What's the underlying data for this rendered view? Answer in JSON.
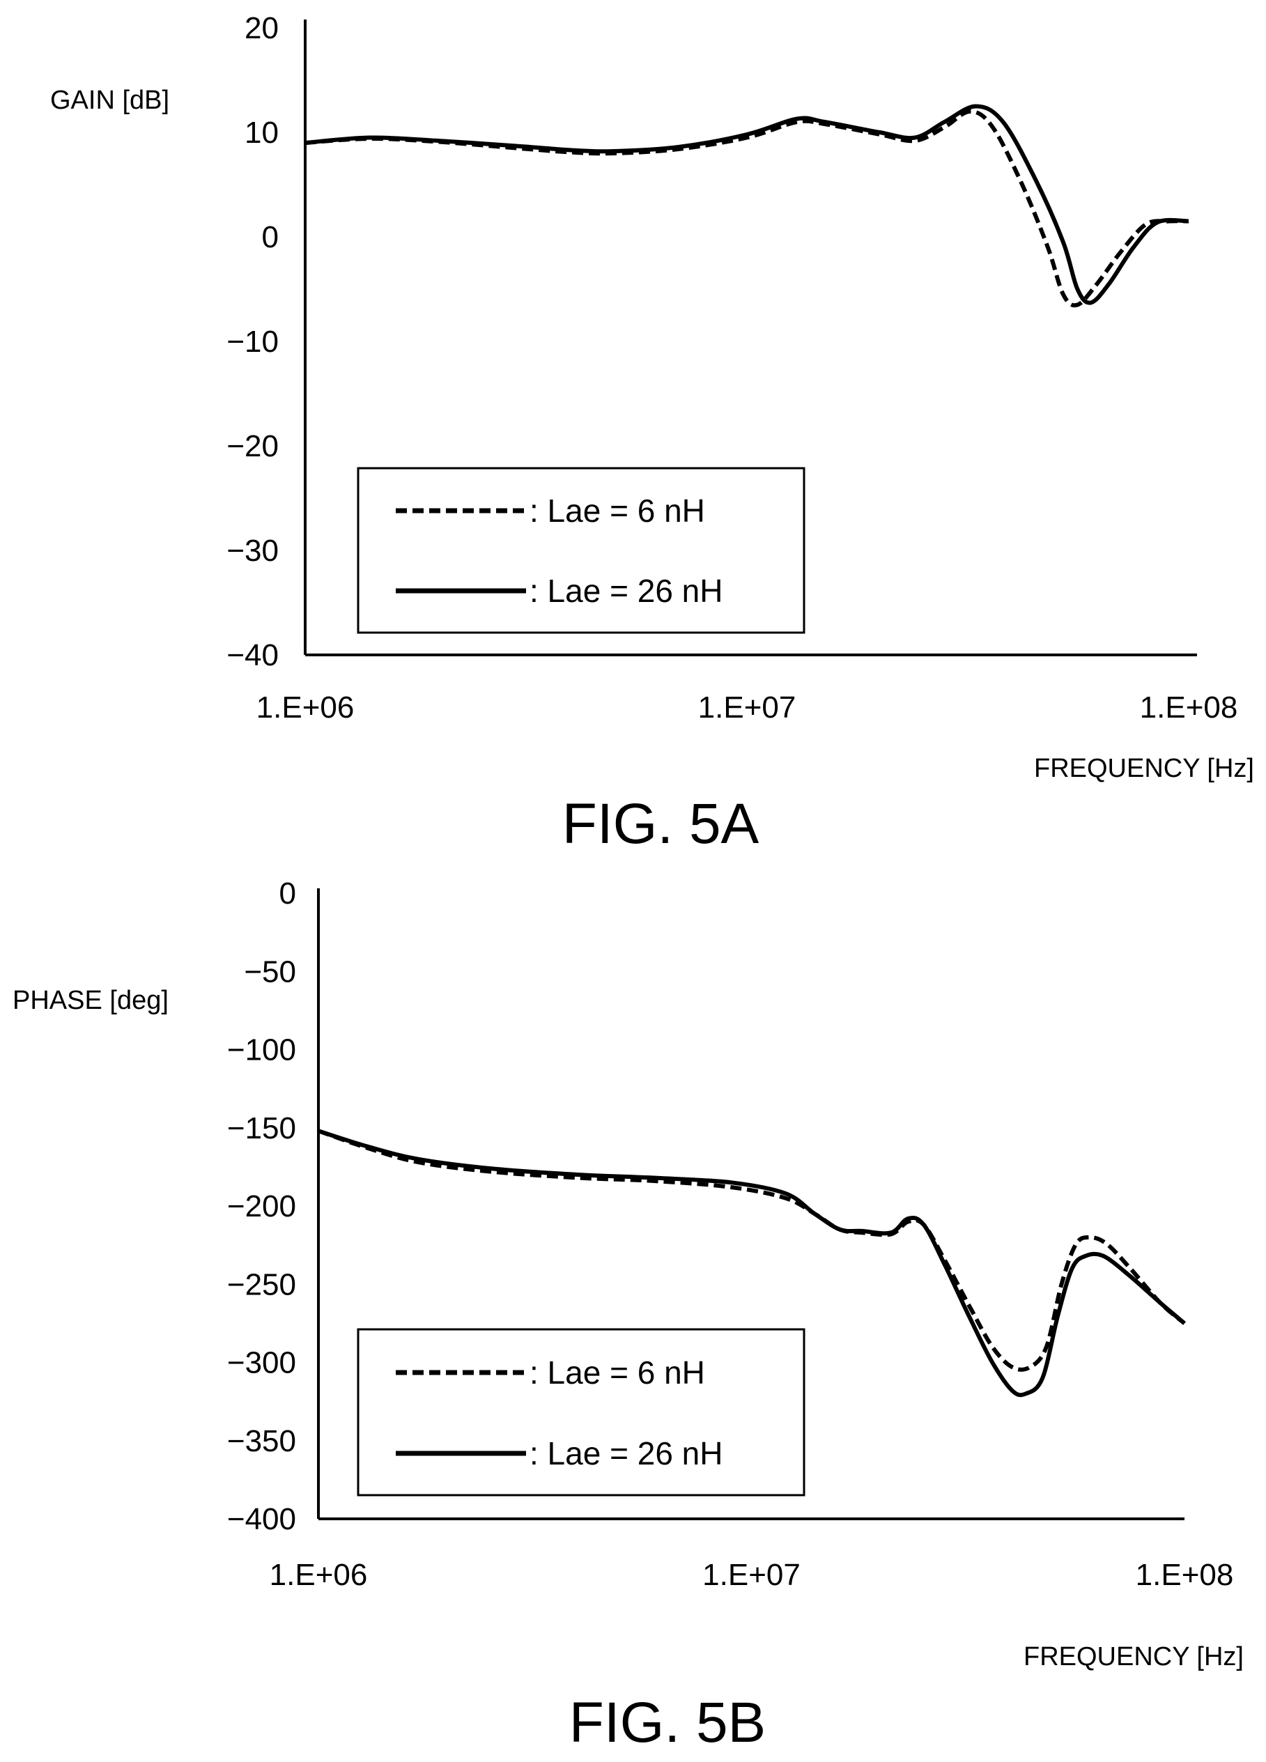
{
  "figures": [
    {
      "caption": "FIG. 5A",
      "chart_data": {
        "type": "line",
        "ylabel": "GAIN [dB]",
        "xlabel": "FREQUENCY [Hz]",
        "x_scale": "log",
        "xlim": [
          1000000,
          100000000
        ],
        "ylim": [
          -40,
          20
        ],
        "x_ticks": [
          "1.E+06",
          "1.E+07",
          "1.E+08"
        ],
        "x_tick_values": [
          1000000,
          10000000,
          100000000
        ],
        "y_ticks": [
          "20",
          "10",
          "0",
          "-10",
          "-20",
          "-30",
          "-40"
        ],
        "y_tick_values": [
          20,
          10,
          0,
          -10,
          -20,
          -30,
          -40
        ],
        "legend_position": "bottom-left",
        "series": [
          {
            "name": ": Lae = 6 nH",
            "style": "dashed",
            "points": [
              [
                1000000,
                9.0
              ],
              [
                1400000,
                9.4
              ],
              [
                2000000,
                9.1
              ],
              [
                3000000,
                8.5
              ],
              [
                4000000,
                8.1
              ],
              [
                5000000,
                8.0
              ],
              [
                7000000,
                8.4
              ],
              [
                10000000,
                9.5
              ],
              [
                13000000,
                11.0
              ],
              [
                15000000,
                10.8
              ],
              [
                20000000,
                9.8
              ],
              [
                24000000,
                9.2
              ],
              [
                28000000,
                10.5
              ],
              [
                32000000,
                12.0
              ],
              [
                36000000,
                10.5
              ],
              [
                42000000,
                5.0
              ],
              [
                48000000,
                -1.0
              ],
              [
                52000000,
                -5.5
              ],
              [
                56000000,
                -6.5
              ],
              [
                62000000,
                -4.5
              ],
              [
                70000000,
                -1.5
              ],
              [
                80000000,
                1.2
              ],
              [
                90000000,
                1.5
              ],
              [
                100000000,
                1.5
              ]
            ]
          },
          {
            "name": ": Lae = 26 nH",
            "style": "solid",
            "points": [
              [
                1000000,
                9.0
              ],
              [
                1400000,
                9.5
              ],
              [
                2000000,
                9.2
              ],
              [
                3000000,
                8.7
              ],
              [
                4000000,
                8.3
              ],
              [
                5000000,
                8.2
              ],
              [
                7000000,
                8.6
              ],
              [
                10000000,
                9.8
              ],
              [
                13000000,
                11.3
              ],
              [
                15000000,
                11.0
              ],
              [
                20000000,
                10.0
              ],
              [
                24000000,
                9.5
              ],
              [
                28000000,
                11.0
              ],
              [
                33000000,
                12.5
              ],
              [
                38000000,
                11.0
              ],
              [
                45000000,
                5.5
              ],
              [
                52000000,
                -0.5
              ],
              [
                56000000,
                -5.0
              ],
              [
                60000000,
                -6.3
              ],
              [
                66000000,
                -4.5
              ],
              [
                75000000,
                -1.0
              ],
              [
                85000000,
                1.4
              ],
              [
                100000000,
                1.5
              ]
            ]
          }
        ]
      }
    },
    {
      "caption": "FIG. 5B",
      "chart_data": {
        "type": "line",
        "ylabel": "PHASE [deg]",
        "xlabel": "FREQUENCY [Hz]",
        "x_scale": "log",
        "xlim": [
          1000000,
          100000000
        ],
        "ylim": [
          -400,
          0
        ],
        "x_ticks": [
          "1.E+06",
          "1.E+07",
          "1.E+08"
        ],
        "x_tick_values": [
          1000000,
          10000000,
          100000000
        ],
        "y_ticks": [
          "0",
          "-50",
          "-100",
          "-150",
          "-200",
          "-250",
          "-300",
          "-350",
          "-400"
        ],
        "y_tick_values": [
          0,
          -50,
          -100,
          -150,
          -200,
          -250,
          -300,
          -350,
          -400
        ],
        "legend_position": "bottom-left",
        "series": [
          {
            "name": ": Lae = 6 nH",
            "style": "dashed",
            "points": [
              [
                1000000,
                -152
              ],
              [
                1300000,
                -163
              ],
              [
                1700000,
                -172
              ],
              [
                2500000,
                -178
              ],
              [
                4000000,
                -182
              ],
              [
                6000000,
                -184
              ],
              [
                9000000,
                -188
              ],
              [
                12000000,
                -195
              ],
              [
                14000000,
                -205
              ],
              [
                16000000,
                -215
              ],
              [
                18000000,
                -217
              ],
              [
                21000000,
                -218
              ],
              [
                23000000,
                -210
              ],
              [
                25000000,
                -212
              ],
              [
                28000000,
                -235
              ],
              [
                32000000,
                -265
              ],
              [
                36000000,
                -290
              ],
              [
                40000000,
                -303
              ],
              [
                44000000,
                -303
              ],
              [
                48000000,
                -290
              ],
              [
                52000000,
                -250
              ],
              [
                56000000,
                -225
              ],
              [
                60000000,
                -220
              ],
              [
                66000000,
                -224
              ],
              [
                75000000,
                -240
              ],
              [
                88000000,
                -262
              ],
              [
                100000000,
                -275
              ]
            ]
          },
          {
            "name": ": Lae = 26 nH",
            "style": "solid",
            "points": [
              [
                1000000,
                -152
              ],
              [
                1300000,
                -162
              ],
              [
                1700000,
                -170
              ],
              [
                2500000,
                -176
              ],
              [
                4000000,
                -180
              ],
              [
                6000000,
                -182
              ],
              [
                9000000,
                -185
              ],
              [
                12000000,
                -192
              ],
              [
                14000000,
                -205
              ],
              [
                16000000,
                -215
              ],
              [
                18000000,
                -216
              ],
              [
                21000000,
                -217
              ],
              [
                23000000,
                -208
              ],
              [
                25000000,
                -212
              ],
              [
                28000000,
                -238
              ],
              [
                32000000,
                -272
              ],
              [
                36000000,
                -300
              ],
              [
                40000000,
                -318
              ],
              [
                43000000,
                -320
              ],
              [
                47000000,
                -310
              ],
              [
                51000000,
                -270
              ],
              [
                55000000,
                -240
              ],
              [
                59000000,
                -232
              ],
              [
                65000000,
                -232
              ],
              [
                75000000,
                -245
              ],
              [
                88000000,
                -262
              ],
              [
                100000000,
                -275
              ]
            ]
          }
        ]
      }
    }
  ]
}
